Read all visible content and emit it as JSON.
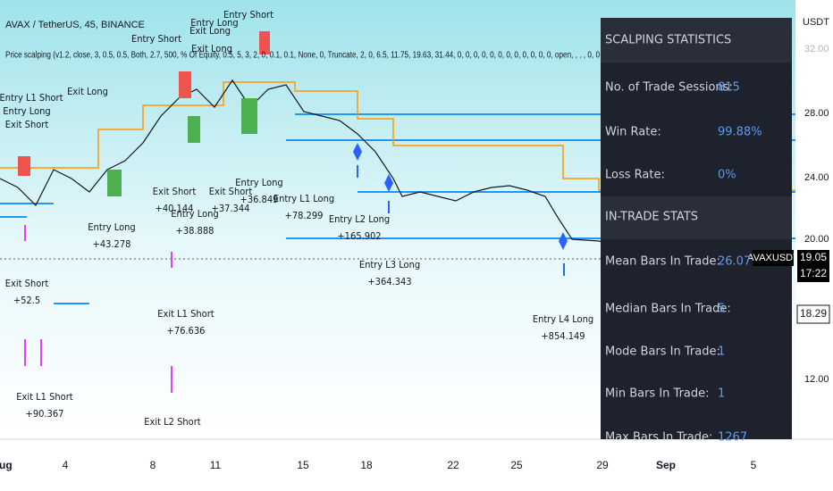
{
  "header": {
    "symbol": "AVAX / TetherUS, 45, BINANCE",
    "indicator": "Price scalping (v1.2, close, 3, 0.5, 0.5, Both, 2.7, 500, % Of Equity, 0.5, 5, 3, 2, 0, 0.1, 0.1, None, 0, Truncate, 2, 0, 6.5, 11.75, 19.63, 31.44, 0, 0, 0, 0, 0, 0, 0, 0, 0, 0, 0, 0, open, , , , 0, 0"
  },
  "stats_panel": {
    "title": "SCALPING STATISTICS",
    "rows": [
      [
        "No. of Trade Sessions:",
        "815"
      ],
      [
        "Win Rate:",
        "99.88%"
      ],
      [
        "Loss Rate:",
        "0%"
      ]
    ],
    "section": "IN-TRADE STATS",
    "trade_rows": [
      [
        "Mean Bars In Trade:",
        "26.07"
      ],
      [
        "Median Bars In Trade:",
        "5"
      ],
      [
        "Mode Bars In Trade:",
        "1"
      ],
      [
        "Min Bars In Trade:",
        "1"
      ],
      [
        "Max Bars In Trade:",
        "1267"
      ]
    ]
  },
  "price_axis": {
    "unit": "USDT",
    "labels": [
      "32.00",
      "28.00",
      "24.00",
      "20.00",
      "12.00"
    ]
  },
  "price_tags": {
    "symbol": "AVAXUSDT",
    "last": "19.05",
    "countdown": "17:22",
    "crosshair": "18.29"
  },
  "time_axis": [
    "Aug",
    "4",
    "8",
    "11",
    "15",
    "18",
    "22",
    "25",
    "29",
    "Sep",
    "5"
  ],
  "annotations": [
    [
      "Entry Short"
    ],
    [
      "Exit Long"
    ],
    [
      "Entry Long"
    ],
    [
      "Exit Short"
    ],
    [
      "Entry L1 Short"
    ],
    [
      "Entry Short"
    ],
    [
      "Exit Long"
    ],
    [
      "Entry Long",
      "+43.278"
    ],
    [
      "Exit Short",
      "+40.144"
    ],
    [
      "Entry Long",
      "+38.888"
    ],
    [
      "Exit Short",
      "+37.344"
    ],
    [
      "Entry Long",
      "+36.849"
    ],
    [
      "Entry L1 Long",
      "+78.299"
    ],
    [
      "Entry L2 Long",
      "+165.902"
    ],
    [
      "Entry L3 Long",
      "+364.343"
    ],
    [
      "Entry L4 Long",
      "+854.149"
    ],
    [
      "Exit L1 Short",
      "+76.636"
    ],
    [
      "Exit L2 Short"
    ],
    [
      "Exit Short",
      "+52.5"
    ],
    [
      "Exit L1 Short",
      "+90.367"
    ],
    [
      "Entry Long"
    ],
    [
      "Exit Long"
    ]
  ]
}
